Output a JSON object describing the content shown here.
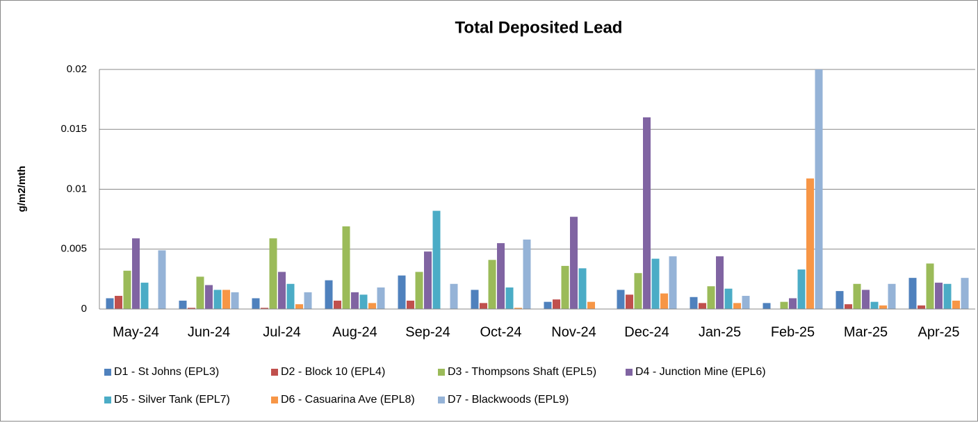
{
  "chart_data": {
    "type": "bar",
    "title": "Total Deposited Lead",
    "y_label": "g/m2/mth",
    "categories": [
      "May-24",
      "Jun-24",
      "Jul-24",
      "Aug-24",
      "Sep-24",
      "Oct-24",
      "Nov-24",
      "Dec-24",
      "Jan-25",
      "Feb-25",
      "Mar-25",
      "Apr-25"
    ],
    "series": [
      {
        "name": "D1 - St Johns (EPL3)",
        "color": "#4f81bd",
        "values": [
          0.0009,
          0.0007,
          0.0009,
          0.0024,
          0.0028,
          0.0016,
          0.0006,
          0.0016,
          0.001,
          0.0005,
          0.0015,
          0.0026
        ]
      },
      {
        "name": "D2 - Block 10 (EPL4)",
        "color": "#c0504d",
        "values": [
          0.0011,
          0.0001,
          0.0001,
          0.0007,
          0.0007,
          0.0005,
          0.0008,
          0.0012,
          0.0005,
          0,
          0.0004,
          0.0003
        ]
      },
      {
        "name": "D3 - Thompsons Shaft (EPL5)",
        "color": "#9bbb59",
        "values": [
          0.0032,
          0.0027,
          0.0059,
          0.0069,
          0.0031,
          0.0041,
          0.0036,
          0.003,
          0.0019,
          0.0006,
          0.0021,
          0.0038
        ]
      },
      {
        "name": "D4 - Junction Mine (EPL6)",
        "color": "#8064a2",
        "values": [
          0.0059,
          0.002,
          0.0031,
          0.0014,
          0.0048,
          0.0055,
          0.0077,
          0.016,
          0.0044,
          0.0009,
          0.0016,
          0.0022
        ]
      },
      {
        "name": "D5 - Silver Tank (EPL7)",
        "color": "#4bacc6",
        "values": [
          0.0022,
          0.0016,
          0.0021,
          0.0012,
          0.0082,
          0.0018,
          0.0034,
          0.0042,
          0.0017,
          0.0033,
          0.0006,
          0.0021
        ]
      },
      {
        "name": "D6 - Casuarina Ave (EPL8)",
        "color": "#f79646",
        "values": [
          0,
          0.0016,
          0.0004,
          0.0005,
          0,
          0.0001,
          0.0006,
          0.0013,
          0.0005,
          0.0109,
          0.0003,
          0.0007
        ]
      },
      {
        "name": "D7 - Blackwoods (EPL9)",
        "color": "#95b3d7",
        "values": [
          0.0049,
          0.0014,
          0.0014,
          0.0018,
          0.0021,
          0.0058,
          0,
          0.0044,
          0.0011,
          0.02,
          0.0021,
          0.0026
        ]
      }
    ],
    "ylim": [
      0,
      0.02
    ],
    "yticks": [
      0,
      0.005,
      0.01,
      0.015,
      0.02
    ],
    "grid": true
  }
}
